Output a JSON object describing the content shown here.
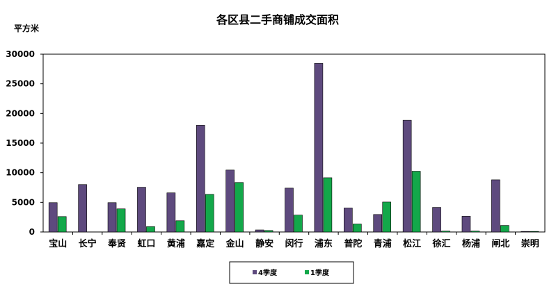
{
  "chart_data": {
    "type": "bar",
    "title": "各区县二手商铺成交面积",
    "ylabel": "平方米",
    "xlabel": "",
    "ylim": [
      0,
      30000
    ],
    "yticks": [
      0,
      5000,
      10000,
      15000,
      20000,
      25000,
      30000
    ],
    "grid": false,
    "legend_position": "bottom",
    "categories": [
      "宝山",
      "长宁",
      "奉贤",
      "虹口",
      "黄浦",
      "嘉定",
      "金山",
      "静安",
      "闵行",
      "浦东",
      "普陀",
      "青浦",
      "松江",
      "徐汇",
      "杨浦",
      "闸北",
      "崇明"
    ],
    "series": [
      {
        "name": "4季度",
        "color": "#5e4a7e",
        "values": [
          4950,
          8000,
          4950,
          7550,
          6600,
          18000,
          10450,
          350,
          7400,
          28450,
          4050,
          2950,
          18850,
          4150,
          2650,
          8800,
          100
        ]
      },
      {
        "name": "1季度",
        "color": "#13a84a",
        "values": [
          2600,
          0,
          3900,
          900,
          1900,
          6350,
          8350,
          250,
          2850,
          9150,
          1350,
          5050,
          10250,
          150,
          150,
          1100,
          100
        ]
      }
    ]
  }
}
